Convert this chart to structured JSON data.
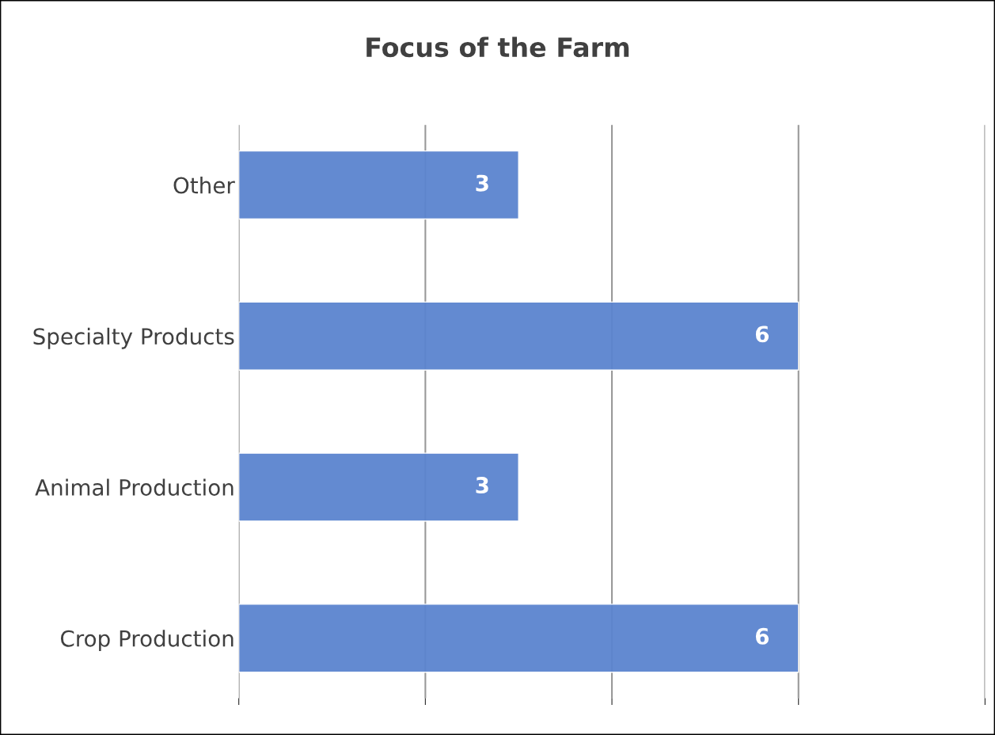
{
  "chart_data": {
    "type": "bar",
    "orientation": "horizontal",
    "title": "Focus of the Farm",
    "categories": [
      "Other",
      "Specialty Products",
      "Animal Production",
      "Crop Production"
    ],
    "values": [
      3,
      6,
      3,
      6
    ],
    "color": "#5b84cf",
    "xlim": [
      0,
      8
    ],
    "xticks": [
      {
        "value": 0,
        "label": null
      },
      {
        "value": 2,
        "label": null
      },
      {
        "value": 4,
        "label": null
      },
      {
        "value": 6,
        "label": null
      },
      {
        "value": 8,
        "label": null
      }
    ],
    "tick_labels": "y",
    "grid": "x",
    "data_labels": true
  }
}
